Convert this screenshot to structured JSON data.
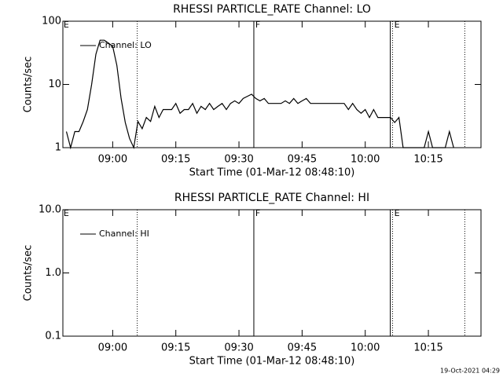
{
  "chart_data": [
    {
      "type": "line",
      "title": "RHESSI PARTICLE_RATE Channel: LO",
      "xlabel": "Start Time (01-Mar-12 08:48:10)",
      "ylabel": "Counts/sec",
      "x": [
        "08:49",
        "08:50",
        "08:51",
        "08:52",
        "08:53",
        "08:54",
        "08:55",
        "08:56",
        "08:57",
        "08:58",
        "08:59",
        "09:00",
        "09:01",
        "09:02",
        "09:03",
        "09:04",
        "09:05",
        "09:06",
        "09:07",
        "09:08",
        "09:09",
        "09:10",
        "09:11",
        "09:12",
        "09:13",
        "09:14",
        "09:15",
        "09:16",
        "09:17",
        "09:18",
        "09:19",
        "09:20",
        "09:21",
        "09:22",
        "09:23",
        "09:24",
        "09:25",
        "09:26",
        "09:27",
        "09:28",
        "09:29",
        "09:30",
        "09:31",
        "09:32",
        "09:33",
        "09:34",
        "09:35",
        "09:36",
        "09:37",
        "09:38",
        "09:39",
        "09:40",
        "09:41",
        "09:42",
        "09:43",
        "09:44",
        "09:45",
        "09:46",
        "09:47",
        "09:48",
        "09:49",
        "09:50",
        "09:51",
        "09:52",
        "09:53",
        "09:54",
        "09:55",
        "09:56",
        "09:57",
        "09:58",
        "09:59",
        "10:00",
        "10:01",
        "10:02",
        "10:03",
        "10:04",
        "10:05",
        "10:06",
        "10:07",
        "10:08",
        "10:09",
        "10:10",
        "10:11",
        "10:12",
        "10:13",
        "10:14",
        "10:15",
        "10:16",
        "10:17",
        "10:18",
        "10:19",
        "10:20",
        "10:21"
      ],
      "series": [
        {
          "name": "Channel: LO",
          "color": "#000000",
          "values": [
            1.8,
            1,
            1.8,
            1.8,
            2.6,
            4,
            10,
            30,
            50,
            50,
            45,
            40,
            20,
            6,
            2.5,
            1.4,
            1,
            2.6,
            2,
            3,
            2.6,
            4.5,
            3,
            4,
            4,
            4,
            5,
            3.5,
            4,
            4,
            5,
            3.5,
            4.5,
            4,
            5,
            4,
            4.5,
            5,
            4,
            5,
            5.5,
            5,
            6,
            6.5,
            7,
            6,
            5.5,
            6,
            5,
            5,
            5,
            5,
            5.5,
            5,
            6,
            5,
            5.5,
            6,
            5,
            5,
            5,
            5,
            5,
            5,
            5,
            5,
            5,
            4,
            5,
            4,
            3.5,
            4,
            3,
            4,
            3,
            3,
            3,
            3,
            2.5,
            3,
            1,
            1,
            1,
            1,
            1,
            1,
            1.8,
            1,
            1,
            1,
            1,
            1.8,
            1
          ]
        }
      ],
      "xlim": [
        "08:48:10",
        "10:27:30"
      ],
      "xticks": [
        "09:00",
        "09:15",
        "09:30",
        "09:45",
        "10:00",
        "10:15"
      ],
      "ylim": [
        1,
        100
      ],
      "yticks": [
        1,
        10,
        100
      ],
      "log_y": true,
      "vlines": [
        {
          "x": "09:05:50",
          "style": "dotted"
        },
        {
          "x": "09:33:32",
          "style": "solid"
        },
        {
          "x": "10:05:57",
          "style": "solid"
        },
        {
          "x": "10:06:30",
          "style": "dotted"
        },
        {
          "x": "10:23:39",
          "style": "dotted"
        }
      ],
      "annotations": [
        {
          "text": "E",
          "x": "08:48:20"
        },
        {
          "text": "F",
          "x": "09:33:54"
        },
        {
          "text": "E",
          "x": "10:06:53"
        }
      ]
    },
    {
      "type": "line",
      "title": "RHESSI PARTICLE_RATE Channel: HI",
      "xlabel": "Start Time (01-Mar-12 08:48:10)",
      "ylabel": "Counts/sec",
      "x": [],
      "series": [
        {
          "name": "Channel: HI",
          "color": "#000000",
          "values": []
        }
      ],
      "xlim": [
        "08:48:10",
        "10:27:30"
      ],
      "xticks": [
        "09:00",
        "09:15",
        "09:30",
        "09:45",
        "10:00",
        "10:15"
      ],
      "ylim": [
        0.1,
        10
      ],
      "yticks": [
        {
          "value": 0.1,
          "label": "0.1"
        },
        {
          "value": 1,
          "label": "1.0"
        },
        {
          "value": 10,
          "label": "10.0"
        }
      ],
      "log_y": true,
      "vlines": [
        {
          "x": "09:05:50",
          "style": "dotted"
        },
        {
          "x": "09:33:32",
          "style": "solid"
        },
        {
          "x": "10:05:57",
          "style": "solid"
        },
        {
          "x": "10:06:30",
          "style": "dotted"
        },
        {
          "x": "10:23:39",
          "style": "dotted"
        }
      ],
      "annotations": [
        {
          "text": "E",
          "x": "08:48:20"
        },
        {
          "text": "F",
          "x": "09:33:54"
        },
        {
          "text": "E",
          "x": "10:06:53"
        }
      ]
    }
  ],
  "footer": "19-Oct-2021 04:29"
}
